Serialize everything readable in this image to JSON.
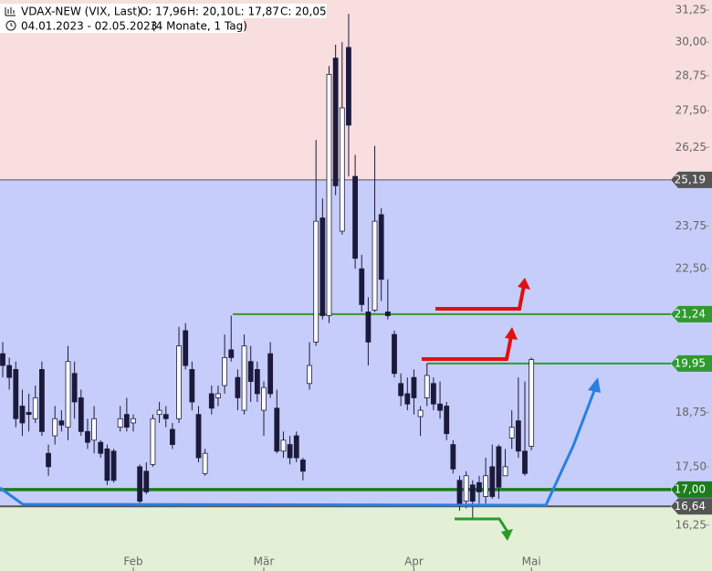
{
  "chart_data": {
    "type": "candlestick",
    "title": "VDAX-NEW (VIX, Last)",
    "ohlc_labels": [
      "O: 17,96",
      "H: 20,10",
      "L: 17,87",
      "C: 20,05"
    ],
    "subtitle": "04.01.2023 - 02.05.2023",
    "period": "(4 Monate, 1 Tag)",
    "log_scale": true,
    "ylim": [
      15.33,
      31.65
    ],
    "yticks": [
      {
        "value": 16.25,
        "label": "16,25"
      },
      {
        "value": 17.5,
        "label": "17,50"
      },
      {
        "value": 18.75,
        "label": "18,75"
      },
      {
        "value": 22.5,
        "label": "22,50"
      },
      {
        "value": 23.75,
        "label": "23,75"
      },
      {
        "value": 26.25,
        "label": "26,25"
      },
      {
        "value": 27.5,
        "label": "27,50"
      },
      {
        "value": 28.75,
        "label": "28,75"
      },
      {
        "value": 30,
        "label": "30,00"
      },
      {
        "value": 31.25,
        "label": "31,25"
      }
    ],
    "categories": [
      null,
      null,
      null,
      null,
      null,
      null,
      null,
      null,
      null,
      null,
      null,
      null,
      null,
      null,
      null,
      null,
      null,
      null,
      null,
      null,
      "Feb",
      null,
      null,
      null,
      null,
      null,
      null,
      null,
      null,
      null,
      null,
      null,
      null,
      null,
      null,
      null,
      null,
      null,
      null,
      null,
      "Mär",
      null,
      null,
      null,
      null,
      null,
      null,
      null,
      null,
      null,
      null,
      null,
      null,
      null,
      null,
      null,
      null,
      null,
      null,
      null,
      null,
      null,
      null,
      "Apr",
      null,
      null,
      null,
      null,
      null,
      null,
      null,
      null,
      null,
      null,
      null,
      null,
      null,
      null,
      null,
      null,
      null,
      "Mai"
    ],
    "open": [
      20.2,
      19.9,
      19.8,
      18.9,
      18.75,
      18.6,
      19.8,
      17.8,
      18.2,
      18.55,
      18.4,
      19.7,
      19.1,
      18.3,
      18.1,
      18.05,
      17.9,
      17.85,
      18.4,
      18.7,
      18.5,
      17.5,
      17.4,
      17.55,
      18.7,
      18.7,
      18.35,
      18.6,
      20.8,
      19.8,
      18.7,
      17.35,
      19.2,
      19.1,
      19.4,
      20.3,
      19.6,
      18.8,
      20.0,
      19.8,
      18.8,
      20.2,
      18.85,
      17.85,
      18.0,
      18.2,
      17.65,
      19.45,
      20.5,
      24.0,
      21.2,
      29.4,
      23.6,
      29.8,
      25.3,
      22.5,
      21.3,
      21.35,
      24.1,
      21.3,
      20.7,
      19.45,
      19.2,
      19.6,
      18.65,
      19.1,
      19.45,
      18.95,
      18.9,
      18.0,
      17.2,
      16.75,
      17.1,
      17.15,
      16.85,
      17.5,
      17.95,
      17.3,
      18.15,
      18.55,
      17.85,
      17.96
    ],
    "high": [
      20.5,
      20.1,
      20.0,
      19.3,
      19.2,
      19.4,
      20.0,
      18.0,
      18.9,
      18.8,
      20.4,
      20.0,
      19.3,
      18.6,
      18.9,
      18.1,
      18.0,
      17.9,
      18.9,
      19.1,
      18.7,
      17.55,
      17.6,
      18.7,
      19.0,
      18.9,
      18.5,
      20.9,
      21.0,
      20.0,
      18.9,
      17.9,
      19.4,
      19.4,
      20.7,
      21.2,
      19.8,
      20.7,
      20.4,
      20.0,
      19.5,
      20.5,
      19.3,
      18.3,
      18.2,
      18.3,
      17.7,
      20.5,
      26.5,
      24.6,
      29.1,
      29.9,
      30.0,
      31.1,
      26.0,
      22.9,
      21.7,
      26.3,
      24.3,
      22.2,
      20.8,
      19.7,
      19.6,
      19.8,
      18.9,
      19.95,
      19.6,
      19.5,
      19.0,
      18.1,
      17.3,
      17.4,
      17.2,
      17.3,
      17.7,
      18.0,
      18.0,
      17.9,
      18.8,
      19.6,
      19.5,
      20.1
    ],
    "low": [
      19.6,
      19.3,
      18.4,
      18.2,
      18.3,
      18.5,
      18.2,
      17.3,
      18.0,
      18.3,
      18.1,
      18.6,
      18.2,
      17.9,
      17.8,
      17.7,
      17.1,
      17.15,
      18.3,
      18.3,
      18.3,
      16.7,
      16.9,
      17.5,
      18.5,
      18.4,
      17.9,
      18.5,
      19.8,
      18.8,
      17.6,
      17.3,
      18.7,
      18.9,
      19.2,
      20.0,
      18.8,
      18.7,
      19.0,
      19.0,
      18.2,
      19.1,
      17.8,
      17.7,
      17.55,
      17.6,
      17.2,
      19.3,
      20.4,
      21.1,
      21.0,
      24.7,
      23.5,
      25.3,
      22.5,
      21.3,
      19.9,
      21.3,
      21.6,
      21.1,
      19.6,
      18.9,
      18.8,
      18.7,
      18.2,
      18.9,
      18.8,
      18.6,
      18.1,
      17.35,
      16.55,
      16.6,
      16.4,
      16.7,
      16.7,
      16.8,
      16.8,
      17.3,
      17.9,
      17.7,
      17.3,
      17.87
    ],
    "close": [
      19.9,
      19.6,
      18.6,
      18.5,
      18.7,
      19.1,
      18.3,
      17.5,
      18.6,
      18.45,
      20.0,
      19.0,
      18.3,
      18.05,
      18.6,
      17.8,
      17.2,
      17.2,
      18.6,
      18.4,
      18.6,
      16.75,
      16.95,
      18.6,
      18.8,
      18.6,
      18.0,
      20.4,
      19.9,
      19.0,
      17.7,
      17.8,
      18.85,
      19.2,
      20.1,
      20.1,
      19.1,
      20.4,
      19.5,
      19.2,
      19.35,
      19.2,
      17.85,
      18.1,
      17.7,
      17.7,
      17.4,
      19.9,
      23.9,
      21.2,
      28.8,
      25.0,
      27.6,
      27.0,
      22.8,
      21.5,
      20.5,
      23.9,
      22.2,
      21.2,
      19.7,
      19.15,
      18.95,
      19.1,
      18.8,
      19.65,
      18.95,
      18.8,
      18.25,
      17.45,
      16.65,
      17.3,
      16.75,
      16.95,
      17.3,
      16.85,
      17.05,
      17.5,
      18.4,
      17.85,
      17.35,
      20.05
    ],
    "up_color": "#ffffff",
    "down_color": "#1c1a3c",
    "levels": [
      {
        "value": 25.19,
        "label": "25,19",
        "color": "#555555"
      },
      {
        "value": 21.24,
        "label": "21,24",
        "color": "#2f9a2f"
      },
      {
        "value": 19.95,
        "label": "19,95",
        "color": "#2f9a2f"
      },
      {
        "value": 17.0,
        "label": "17,00",
        "color": "#1b7d1b"
      },
      {
        "value": 16.64,
        "label": "16,64",
        "color": "#555555"
      }
    ]
  }
}
